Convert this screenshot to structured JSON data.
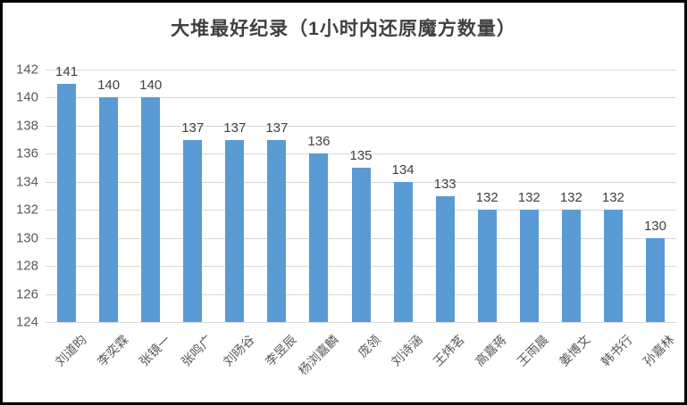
{
  "chart_data": {
    "type": "bar",
    "title": "大堆最好纪录（1小时内还原魔方数量）",
    "categories": [
      "刘道昀",
      "李奕霖",
      "张镜一",
      "张鸣广",
      "刘旸谷",
      "李昱辰",
      "杨浏嘉麟",
      "庞领",
      "刘诗涵",
      "王炜茗",
      "高嘉蒋",
      "王雨晨",
      "姜博文",
      "韩书行",
      "孙嘉林"
    ],
    "values": [
      141,
      140,
      140,
      137,
      137,
      137,
      136,
      135,
      134,
      133,
      132,
      132,
      132,
      132,
      130
    ],
    "xlabel": "",
    "ylabel": "",
    "ylim": [
      124,
      142
    ],
    "ytick_step": 2,
    "yticks": [
      124,
      126,
      128,
      130,
      132,
      134,
      136,
      138,
      140,
      142
    ],
    "grid": true,
    "legend_position": "none",
    "data_labels_shown": true,
    "colors": {
      "bar": "#5b9bd5",
      "gridline": "#d9d9d9",
      "axis_text": "#595959",
      "value_label_text": "#404040",
      "title_text": "#404040",
      "background": "#ffffff",
      "frame_border": "#000000"
    }
  }
}
